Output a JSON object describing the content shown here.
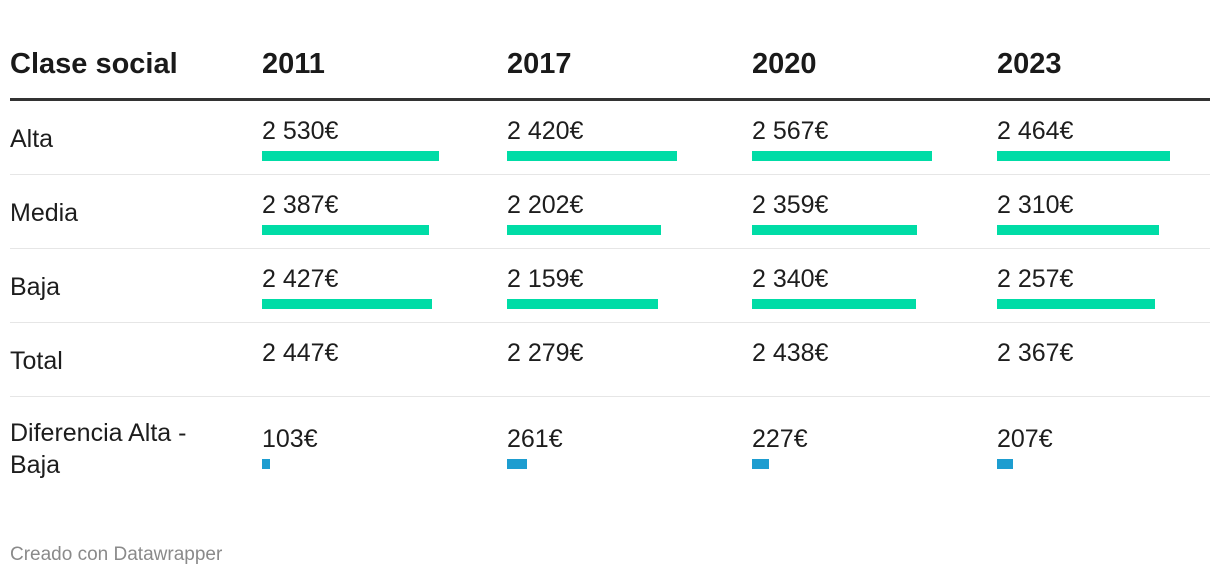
{
  "chart_data": {
    "type": "table",
    "columns": [
      "Clase social",
      "2011",
      "2017",
      "2020",
      "2023"
    ],
    "rows": [
      {
        "label": "Alta",
        "values": [
          2530,
          2420,
          2567,
          2464
        ],
        "display": [
          "2 530€",
          "2 420€",
          "2 567€",
          "2 464€"
        ],
        "bar": true
      },
      {
        "label": "Media",
        "values": [
          2387,
          2202,
          2359,
          2310
        ],
        "display": [
          "2 387€",
          "2 202€",
          "2 359€",
          "2 310€"
        ],
        "bar": true
      },
      {
        "label": "Baja",
        "values": [
          2427,
          2159,
          2340,
          2257
        ],
        "display": [
          "2 427€",
          "2 159€",
          "2 340€",
          "2 257€"
        ],
        "bar": true
      },
      {
        "label": "Total",
        "values": [
          2447,
          2279,
          2438,
          2367
        ],
        "display": [
          "2 447€",
          "2 279€",
          "2 438€",
          "2 367€"
        ],
        "bar": false
      },
      {
        "label": "Diferencia Alta - Baja",
        "values": [
          103,
          261,
          227,
          207
        ],
        "display": [
          "103€",
          "261€",
          "227€",
          "207€"
        ],
        "bar": true
      }
    ]
  },
  "colors": {
    "bar_main": "#00dca6",
    "bar_difference": "#1d9dd0",
    "header_rule": "#333333",
    "row_rule": "#e6e6e6"
  },
  "footer": "Creado con Datawrapper"
}
